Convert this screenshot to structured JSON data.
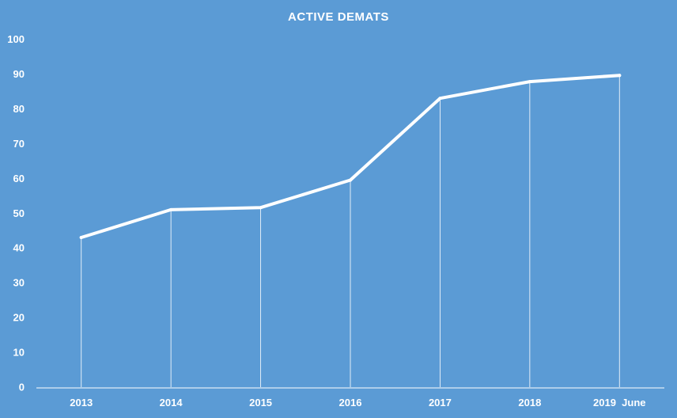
{
  "chart_data": {
    "type": "line",
    "title": "ACTIVE DEMATS",
    "xlabel": "",
    "ylabel": "",
    "categories": [
      "2013",
      "2014",
      "2015",
      "2016",
      "2017",
      "2018",
      "2019  June"
    ],
    "series": [
      {
        "values": [
          43,
          51,
          51.6,
          59.5,
          83,
          87.8,
          89.6
        ]
      }
    ],
    "ylim": [
      0,
      100
    ],
    "yticks": [
      0,
      10,
      20,
      30,
      40,
      50,
      60,
      70,
      80,
      90,
      100
    ],
    "drop_lines": true,
    "grid": false,
    "legend": "none",
    "colors": {
      "background": "#5b9bd5",
      "line": "#ffffff",
      "text": "#ffffff"
    }
  }
}
